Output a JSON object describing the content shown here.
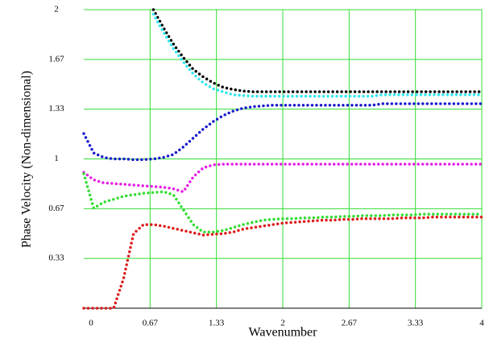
{
  "chart_data": {
    "type": "line",
    "xlabel": "Wavenumber",
    "ylabel": "Phase Velocity (Non-dimensional)",
    "x": [
      0,
      0.1,
      0.2,
      0.3,
      0.4,
      0.5,
      0.6,
      0.7,
      0.8,
      0.9,
      1.0,
      1.1,
      1.2,
      1.3,
      1.4,
      1.5,
      1.6,
      1.7,
      1.8,
      1.9,
      2.0,
      2.1,
      2.2,
      2.3,
      2.4,
      2.5,
      2.6,
      2.7,
      2.8,
      2.9,
      3.0,
      3.1,
      3.2,
      3.3,
      3.4,
      3.5,
      3.6,
      3.7,
      3.8,
      3.9,
      4.0
    ],
    "series": [
      {
        "color": "#000000",
        "values": [
          null,
          null,
          null,
          null,
          null,
          null,
          null,
          2.0,
          1.88,
          1.77,
          1.68,
          1.6,
          1.55,
          1.51,
          1.48,
          1.465,
          1.455,
          1.45,
          1.45,
          1.45,
          1.45,
          1.45,
          1.45,
          1.45,
          1.45,
          1.45,
          1.45,
          1.45,
          1.45,
          1.45,
          1.45,
          1.45,
          1.45,
          1.45,
          1.45,
          1.45,
          1.45,
          1.45,
          1.45,
          1.45,
          1.45
        ]
      },
      {
        "color": "#33e6f0",
        "values": [
          null,
          null,
          null,
          null,
          null,
          null,
          null,
          1.97,
          1.85,
          1.74,
          1.65,
          1.57,
          1.51,
          1.47,
          1.45,
          1.43,
          1.425,
          1.42,
          1.42,
          1.42,
          1.42,
          1.42,
          1.42,
          1.42,
          1.42,
          1.42,
          1.42,
          1.42,
          1.42,
          1.42,
          1.43,
          1.43,
          1.43,
          1.43,
          1.43,
          1.43,
          1.43,
          1.43,
          1.43,
          1.43,
          1.43
        ]
      },
      {
        "color": "#1a1acc",
        "values": [
          1.17,
          1.04,
          1.01,
          1.0,
          1.0,
          0.995,
          0.995,
          1.0,
          1.01,
          1.03,
          1.08,
          1.14,
          1.2,
          1.25,
          1.29,
          1.32,
          1.34,
          1.35,
          1.355,
          1.36,
          1.36,
          1.36,
          1.36,
          1.36,
          1.36,
          1.36,
          1.36,
          1.36,
          1.36,
          1.36,
          1.37,
          1.37,
          1.37,
          1.37,
          1.37,
          1.37,
          1.37,
          1.37,
          1.37,
          1.37,
          1.37
        ]
      },
      {
        "color": "#e61ee6",
        "values": [
          0.91,
          0.86,
          0.84,
          0.835,
          0.83,
          0.825,
          0.82,
          0.815,
          0.81,
          0.8,
          0.78,
          0.88,
          0.94,
          0.96,
          0.965,
          0.965,
          0.965,
          0.965,
          0.965,
          0.965,
          0.965,
          0.965,
          0.965,
          0.965,
          0.965,
          0.965,
          0.965,
          0.965,
          0.965,
          0.965,
          0.965,
          0.965,
          0.965,
          0.965,
          0.965,
          0.965,
          0.965,
          0.965,
          0.965,
          0.965,
          0.965
        ]
      },
      {
        "color": "#33dd33",
        "values": [
          0.9,
          0.67,
          0.71,
          0.73,
          0.75,
          0.76,
          0.77,
          0.775,
          0.78,
          0.76,
          0.66,
          0.56,
          0.51,
          0.51,
          0.52,
          0.54,
          0.56,
          0.575,
          0.59,
          0.595,
          0.6,
          0.6,
          0.605,
          0.605,
          0.61,
          0.61,
          0.615,
          0.615,
          0.62,
          0.62,
          0.62,
          0.625,
          0.625,
          0.625,
          0.63,
          0.63,
          0.63,
          0.63,
          0.63,
          0.63,
          0.63
        ]
      },
      {
        "color": "#dd1a1a",
        "values": [
          0,
          0,
          0,
          0,
          0.2,
          0.5,
          0.56,
          0.56,
          0.55,
          0.535,
          0.52,
          0.505,
          0.49,
          0.495,
          0.5,
          0.51,
          0.53,
          0.54,
          0.55,
          0.56,
          0.57,
          0.575,
          0.58,
          0.585,
          0.59,
          0.59,
          0.595,
          0.595,
          0.6,
          0.6,
          0.6,
          0.6,
          0.605,
          0.605,
          0.605,
          0.61,
          0.61,
          0.61,
          0.61,
          0.61,
          0.61
        ]
      }
    ],
    "xlim": [
      0,
      4
    ],
    "xticks": [
      0,
      {
        "value": 0.6667,
        "label": "0.67"
      },
      {
        "value": 1.3333,
        "label": "1.33"
      },
      2,
      {
        "value": 2.6667,
        "label": "2.67"
      },
      {
        "value": 3.3333,
        "label": "3.33"
      },
      4
    ],
    "ylim": [
      0,
      2
    ],
    "yticks": [
      {
        "value": 0.3333,
        "label": "0.33"
      },
      {
        "value": 0.6667,
        "label": "0.67"
      },
      1,
      {
        "value": 1.3333,
        "label": "1.33"
      },
      {
        "value": 1.6667,
        "label": "1.67"
      },
      2
    ],
    "grid": true,
    "grid_color": "#33dd33"
  }
}
